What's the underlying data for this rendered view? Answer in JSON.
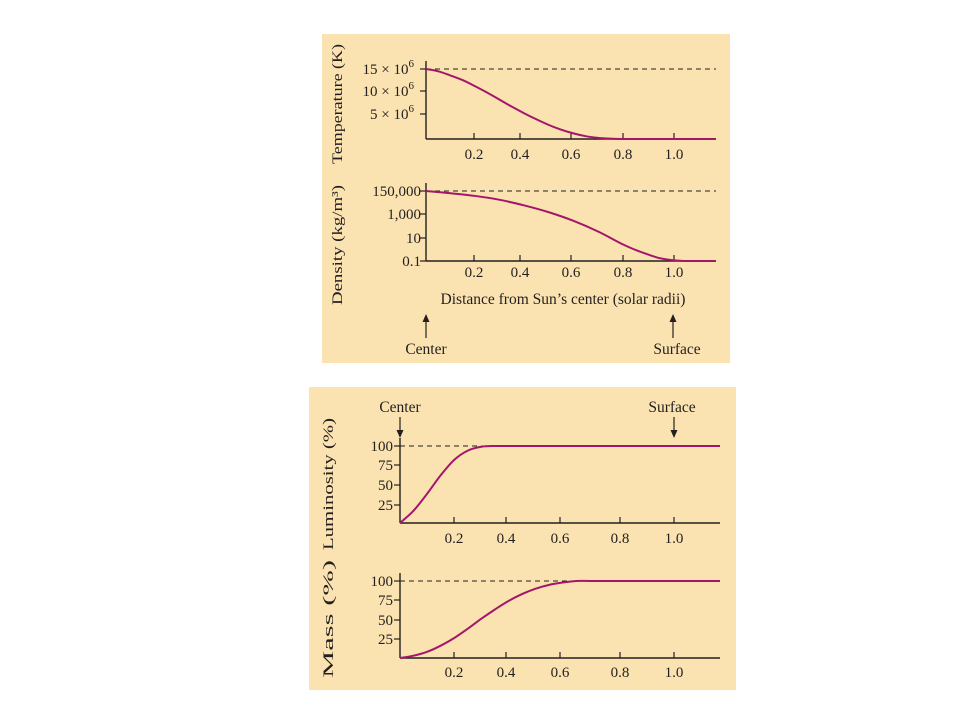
{
  "colors": {
    "panel": "#fae3b0",
    "curve": "#a3176b",
    "axis": "#231f20"
  },
  "top_panel": {
    "distance_label": "Distance from Sun’s center (solar radii)",
    "center_label": "Center",
    "surface_label": "Surface"
  },
  "bottom_panel": {
    "center_label": "Center",
    "surface_label": "Surface"
  },
  "chart_data": [
    {
      "type": "line",
      "ylabel": "Temperature (K)",
      "xlim": [
        0,
        1.18
      ],
      "ylim": [
        0,
        15000000
      ],
      "x_ticks": [
        "0.2",
        "0.4",
        "0.6",
        "0.8",
        "1.0"
      ],
      "y_ticks": [
        {
          "mant": "15 × 10",
          "exp": "6",
          "value": 15000000
        },
        {
          "mant": "10 × 10",
          "exp": "6",
          "value": 10000000
        },
        {
          "mant": "5 × 10",
          "exp": "6",
          "value": 5000000
        }
      ],
      "x": [
        0,
        0.05,
        0.1,
        0.15,
        0.2,
        0.25,
        0.3,
        0.35,
        0.4,
        0.45,
        0.5,
        0.55,
        0.6,
        0.65,
        0.7,
        0.75,
        0.8,
        0.9,
        1.0,
        1.1,
        1.18
      ],
      "y": [
        15000000,
        14500000,
        13600000,
        12600000,
        11300000,
        9900000,
        8400000,
        6900000,
        5500000,
        4200000,
        3000000,
        2000000,
        1200000,
        600000,
        250000,
        80000,
        10000,
        10000,
        10000,
        10000,
        10000
      ]
    },
    {
      "type": "line",
      "ylabel": "Density (kg/m³)",
      "yscale": "log",
      "xlim": [
        0,
        1.18
      ],
      "ylim": [
        0.1,
        150000
      ],
      "x_ticks": [
        "0.2",
        "0.4",
        "0.6",
        "0.8",
        "1.0"
      ],
      "y_ticks": [
        "150,000",
        "1,000",
        "10",
        "0.1"
      ],
      "x": [
        0,
        0.1,
        0.2,
        0.3,
        0.4,
        0.5,
        0.6,
        0.7,
        0.8,
        0.85,
        0.9,
        0.95,
        1.0,
        1.05,
        1.1,
        1.18
      ],
      "y": [
        150000,
        95000,
        55000,
        25000,
        8000,
        2000,
        350,
        40,
        3,
        1,
        0.4,
        0.18,
        0.12,
        0.1,
        0.1,
        0.1
      ]
    },
    {
      "type": "line",
      "ylabel": "Luminosity (%)",
      "xlim": [
        0,
        1.18
      ],
      "ylim": [
        0,
        100
      ],
      "x_ticks": [
        "0.2",
        "0.4",
        "0.6",
        "0.8",
        "1.0"
      ],
      "y_ticks": [
        "100",
        "75",
        "50",
        "25"
      ],
      "x": [
        0,
        0.05,
        0.1,
        0.15,
        0.2,
        0.25,
        0.3,
        0.35,
        0.4,
        0.6,
        0.8,
        1.0,
        1.18
      ],
      "y": [
        0,
        16,
        38,
        62,
        82,
        94,
        99,
        100,
        100,
        100,
        100,
        100,
        100
      ]
    },
    {
      "type": "line",
      "ylabel": "Mass (%)",
      "xlim": [
        0,
        1.18
      ],
      "ylim": [
        0,
        100
      ],
      "x_ticks": [
        "0.2",
        "0.4",
        "0.6",
        "0.8",
        "1.0"
      ],
      "y_ticks": [
        "100",
        "75",
        "50",
        "25"
      ],
      "x": [
        0,
        0.05,
        0.1,
        0.15,
        0.2,
        0.25,
        0.3,
        0.35,
        0.4,
        0.45,
        0.5,
        0.55,
        0.6,
        0.65,
        0.7,
        0.8,
        1.0,
        1.18
      ],
      "y": [
        0,
        3,
        8,
        16,
        26,
        38,
        51,
        63,
        74,
        83,
        90,
        95,
        98,
        100,
        100,
        100,
        100,
        100
      ]
    }
  ]
}
